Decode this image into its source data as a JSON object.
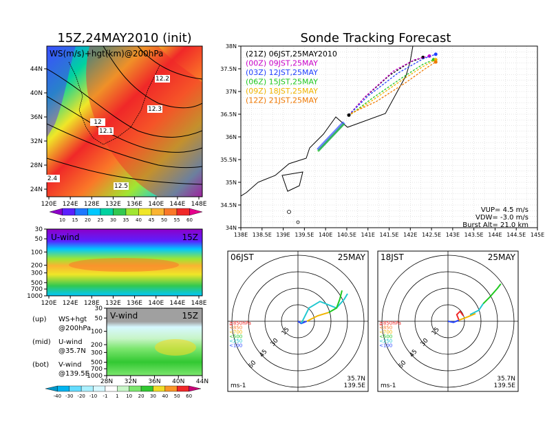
{
  "colors": {
    "ws_scale": [
      "#8d00c8",
      "#5a20ff",
      "#1e78ff",
      "#00c8ff",
      "#00d2a0",
      "#32c850",
      "#a0e632",
      "#f0e628",
      "#fab432",
      "#fa7828",
      "#f02828",
      "#e6008c"
    ],
    "v_scale": [
      "#0096c8",
      "#00b4f0",
      "#64dcff",
      "#aaf0ff",
      "#d7f8ff",
      "#ffffff",
      "#c8f5c8",
      "#7ce66e",
      "#32c832",
      "#f0dc28",
      "#fa9628",
      "#f02828",
      "#c80078"
    ],
    "trajectories": [
      "#000000",
      "#c800c8",
      "#2040ff",
      "#20c820",
      "#f0b400",
      "#f07800"
    ]
  },
  "chart_data": [
    {
      "panel": "ws-map",
      "type": "heatmap",
      "title": "15Z,24MAY2010 (init)",
      "label": "WS(m/s)+hgt(km)@200hPa",
      "x_ticks": [
        "120E",
        "124E",
        "128E",
        "132E",
        "136E",
        "140E",
        "144E",
        "148E"
      ],
      "y_ticks": [
        "44N",
        "40N",
        "36N",
        "32N",
        "28N",
        "24N"
      ],
      "xlim": [
        120,
        150
      ],
      "ylim": [
        22,
        47
      ],
      "colorbar_labels": [
        "10",
        "15",
        "20",
        "25",
        "30",
        "35",
        "40",
        "45",
        "50",
        "55",
        "60"
      ],
      "contour_labels": [
        "12.2",
        "12",
        "12.1",
        "12.3",
        "12.5",
        "2.4"
      ]
    },
    {
      "panel": "u-wind",
      "type": "heatmap",
      "label": "U-wind",
      "time": "15Z",
      "x_ticks": [
        "120E",
        "124E",
        "128E",
        "132E",
        "136E",
        "140E",
        "144E",
        "148E"
      ],
      "y_ticks": [
        "30",
        "50",
        "100",
        "200",
        "300",
        "500",
        "700",
        "1000"
      ]
    },
    {
      "panel": "v-wind",
      "type": "heatmap",
      "label": "V-wind",
      "time": "15Z",
      "x_ticks": [
        "28N",
        "32N",
        "36N",
        "40N",
        "44N"
      ],
      "y_ticks": [
        "30",
        "50",
        "100",
        "200",
        "300",
        "500",
        "700",
        "1000"
      ],
      "colorbar_labels": [
        "-40",
        "-30",
        "-20",
        "-10",
        "-1",
        "1",
        "10",
        "20",
        "30",
        "40",
        "50",
        "60"
      ]
    },
    {
      "panel": "tracking",
      "type": "line",
      "title": "Sonde Tracking Forecast",
      "x_ticks": [
        "138E",
        "138.5E",
        "139E",
        "139.5E",
        "140E",
        "140.5E",
        "141E",
        "141.5E",
        "142E",
        "142.5E",
        "143E",
        "143.5E",
        "144E",
        "144.5E",
        "145E"
      ],
      "y_ticks": [
        "38N",
        "37.5N",
        "37N",
        "36.5N",
        "36N",
        "35.5N",
        "35N",
        "34.5N",
        "34N"
      ],
      "xlim": [
        138,
        145
      ],
      "ylim": [
        34,
        38
      ],
      "series": [
        {
          "name": "(21Z) 06JST,25MAY2010",
          "points": [
            [
              140.55,
              36.48
            ],
            [
              140.9,
              36.85
            ],
            [
              141.5,
              37.35
            ],
            [
              142.0,
              37.65
            ],
            [
              142.3,
              37.75
            ]
          ]
        },
        {
          "name": "(00Z) 09JST,25MAY",
          "points": [
            [
              140.55,
              36.48
            ],
            [
              140.95,
              36.9
            ],
            [
              141.6,
              37.45
            ],
            [
              142.1,
              37.7
            ],
            [
              142.45,
              37.78
            ]
          ]
        },
        {
          "name": "(03Z) 12JST,25MAY",
          "points": [
            [
              140.55,
              36.48
            ],
            [
              141.0,
              36.9
            ],
            [
              141.7,
              37.4
            ],
            [
              142.3,
              37.72
            ],
            [
              142.6,
              37.82
            ]
          ]
        },
        {
          "name": "(06Z) 15JST,25MAY",
          "points": [
            [
              140.6,
              36.5
            ],
            [
              141.1,
              36.85
            ],
            [
              141.8,
              37.3
            ],
            [
              142.3,
              37.6
            ],
            [
              142.55,
              37.7
            ]
          ]
        },
        {
          "name": "(09Z) 18JST,25MAY",
          "points": [
            [
              140.6,
              36.5
            ],
            [
              141.1,
              36.8
            ],
            [
              141.8,
              37.25
            ],
            [
              142.3,
              37.55
            ],
            [
              142.6,
              37.7
            ]
          ]
        },
        {
          "name": "(12Z) 21JST,25MAY",
          "points": [
            [
              140.6,
              36.52
            ],
            [
              141.2,
              36.78
            ],
            [
              141.9,
              37.2
            ],
            [
              142.35,
              37.5
            ],
            [
              142.6,
              37.65
            ]
          ]
        }
      ],
      "info": [
        "VUP= 4.5 m/s",
        "VDW= -3.0 m/s",
        "Burst Alt= 21.0 km"
      ]
    },
    {
      "panel": "hodo-06",
      "type": "line",
      "label_left": "06JST",
      "label_right": "25MAY",
      "ring_labels": [
        "15",
        "30",
        "45",
        "60"
      ],
      "legend": [
        "≧850hPa",
        "<850",
        "<700",
        "<500",
        "<250",
        "<100"
      ],
      "units": "ms-1",
      "location": [
        "35.7N",
        "139.5E"
      ],
      "segments": [
        {
          "color": "#2040ff",
          "points": [
            [
              0,
              0
            ],
            [
              3,
              -2
            ],
            [
              8,
              0
            ]
          ]
        },
        {
          "color": "#20c8d0",
          "points": [
            [
              3,
              -2
            ],
            [
              10,
              12
            ],
            [
              20,
              18
            ],
            [
              35,
              12
            ],
            [
              42,
              20
            ],
            [
              45,
              25
            ]
          ]
        },
        {
          "color": "#f0b400",
          "points": [
            [
              8,
              0
            ],
            [
              18,
              5
            ],
            [
              28,
              8
            ]
          ]
        },
        {
          "color": "#20c820",
          "points": [
            [
              28,
              8
            ],
            [
              35,
              12
            ],
            [
              38,
              20
            ],
            [
              40,
              28
            ]
          ]
        }
      ]
    },
    {
      "panel": "hodo-18",
      "type": "line",
      "label_left": "18JST",
      "label_right": "25MAY",
      "ring_labels": [
        "15",
        "30",
        "45",
        "60"
      ],
      "legend": [
        "≧850hPa",
        "<850",
        "<700",
        "<500",
        "<250",
        "<100"
      ],
      "units": "ms-1",
      "location": [
        "35.7N",
        "139.5E"
      ],
      "segments": [
        {
          "color": "#2040ff",
          "points": [
            [
              0,
              0
            ],
            [
              5,
              -1
            ],
            [
              10,
              1
            ]
          ]
        },
        {
          "color": "#f02828",
          "points": [
            [
              10,
              1
            ],
            [
              8,
              6
            ],
            [
              11,
              9
            ],
            [
              14,
              5
            ]
          ]
        },
        {
          "color": "#f0b400",
          "points": [
            [
              10,
              1
            ],
            [
              18,
              4
            ],
            [
              25,
              7
            ]
          ]
        },
        {
          "color": "#20c8d0",
          "points": [
            [
              20,
              6
            ],
            [
              28,
              10
            ],
            [
              32,
              16
            ]
          ]
        },
        {
          "color": "#20c820",
          "points": [
            [
              32,
              16
            ],
            [
              38,
              22
            ],
            [
              45,
              30
            ],
            [
              48,
              34
            ]
          ]
        }
      ]
    }
  ],
  "left_notes": [
    {
      "tag": "(up)",
      "text1": "WS+hgt",
      "text2": "@200hPa"
    },
    {
      "tag": "(mid)",
      "text1": "U-wind",
      "text2": "@35.7N"
    },
    {
      "tag": "(bot)",
      "text1": "V-wind",
      "text2": "@139.5E"
    }
  ]
}
